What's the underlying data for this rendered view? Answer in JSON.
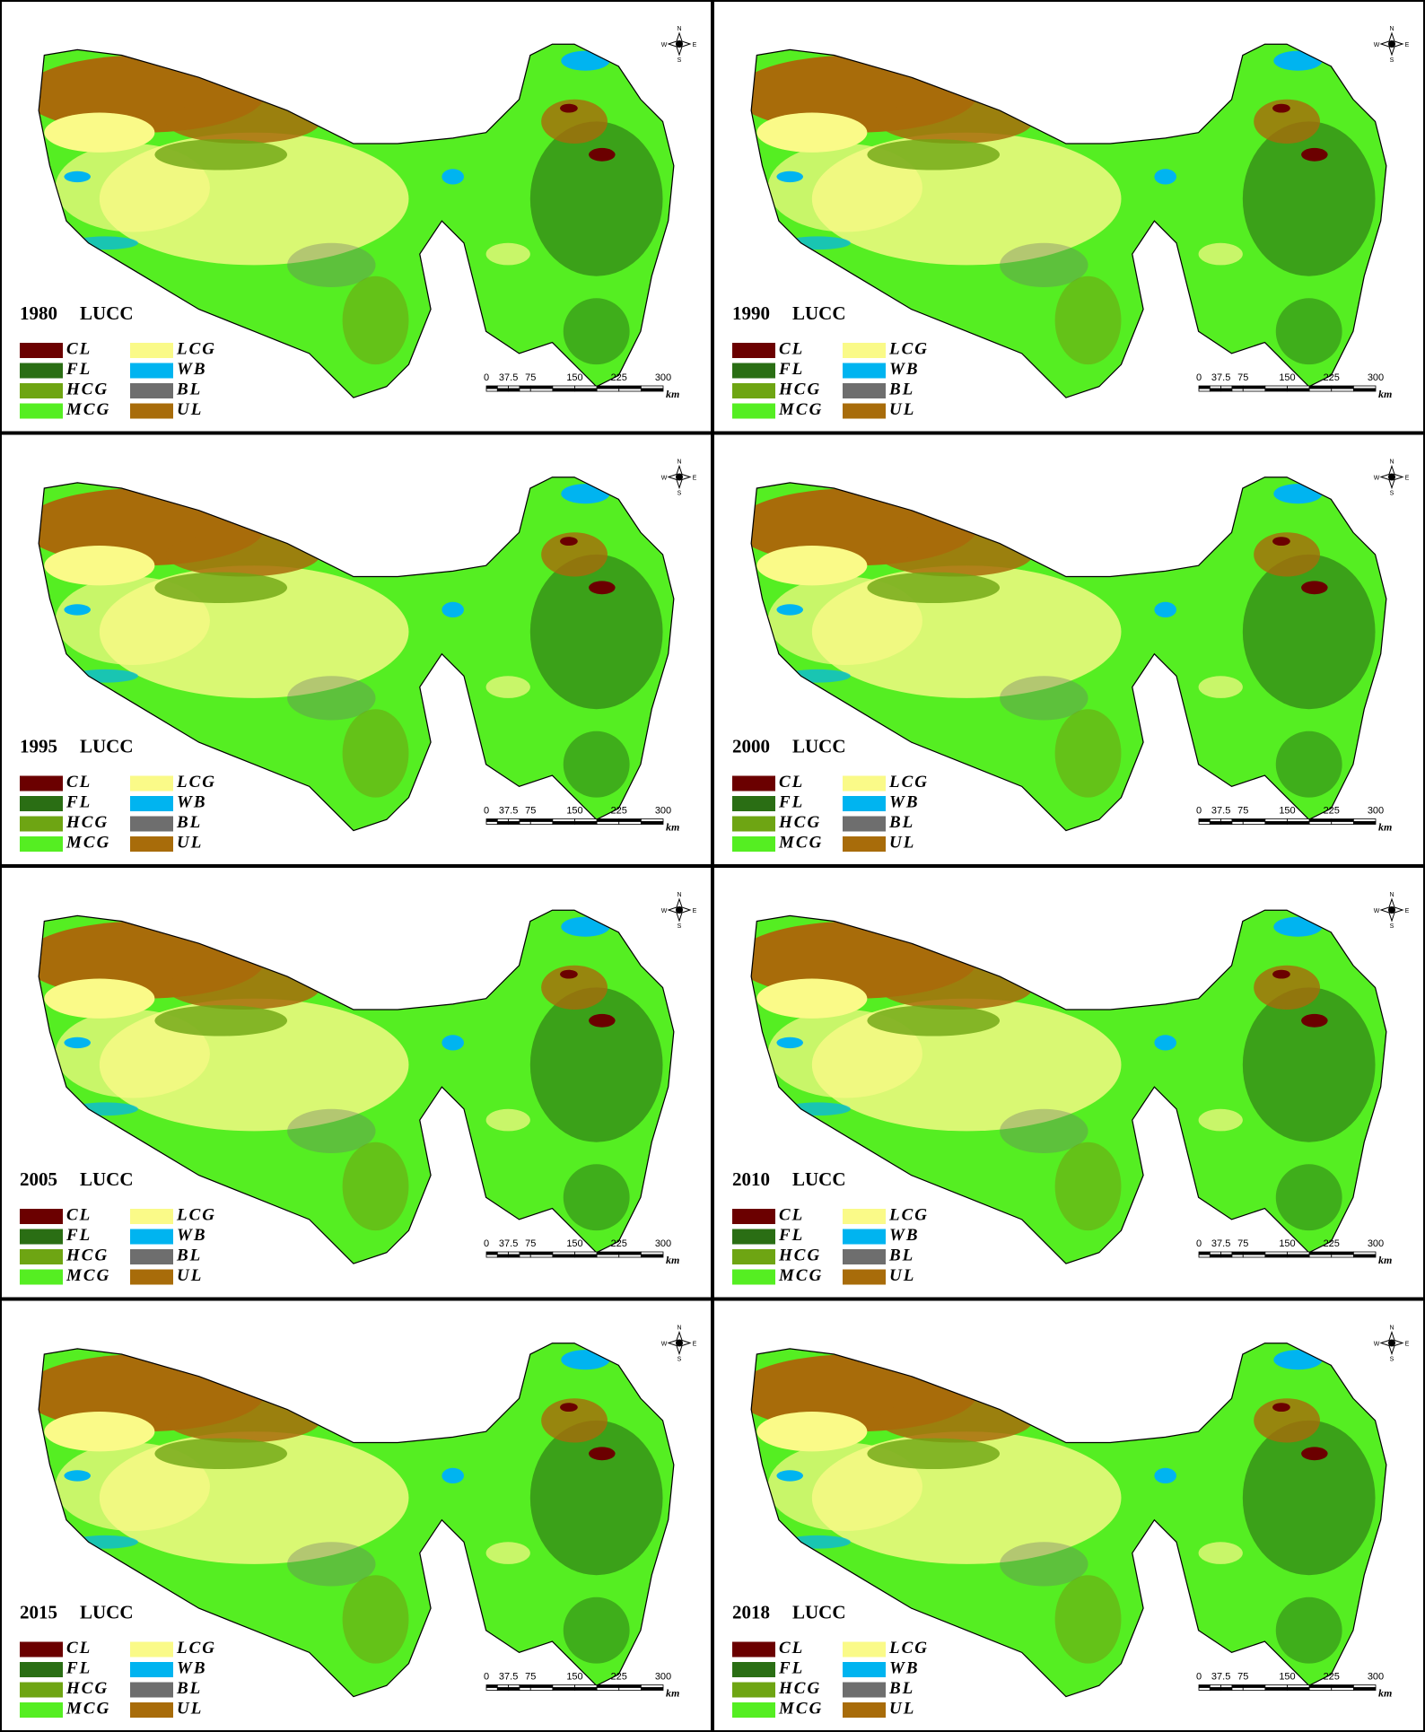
{
  "label": "LUCC",
  "panels": [
    {
      "year": "1980"
    },
    {
      "year": "1990"
    },
    {
      "year": "1995"
    },
    {
      "year": "2000"
    },
    {
      "year": "2005"
    },
    {
      "year": "2010"
    },
    {
      "year": "2015"
    },
    {
      "year": "2018"
    }
  ],
  "legend": [
    {
      "code": "CL",
      "color": "#6b0000"
    },
    {
      "code": "FL",
      "color": "#2a6e14"
    },
    {
      "code": "HCG",
      "color": "#6ea513"
    },
    {
      "code": "MCG",
      "color": "#55ee22"
    },
    {
      "code": "LCG",
      "color": "#fafa88"
    },
    {
      "code": "WB",
      "color": "#00b4f0"
    },
    {
      "code": "BL",
      "color": "#6e6e6e"
    },
    {
      "code": "UL",
      "color": "#a86c0a"
    }
  ],
  "scale_bar": {
    "ticks": [
      "0",
      "37.5",
      "75",
      "150",
      "225",
      "300"
    ],
    "unit": "km"
  },
  "compass": {
    "n": "N",
    "s": "S",
    "e": "E",
    "w": "W"
  }
}
